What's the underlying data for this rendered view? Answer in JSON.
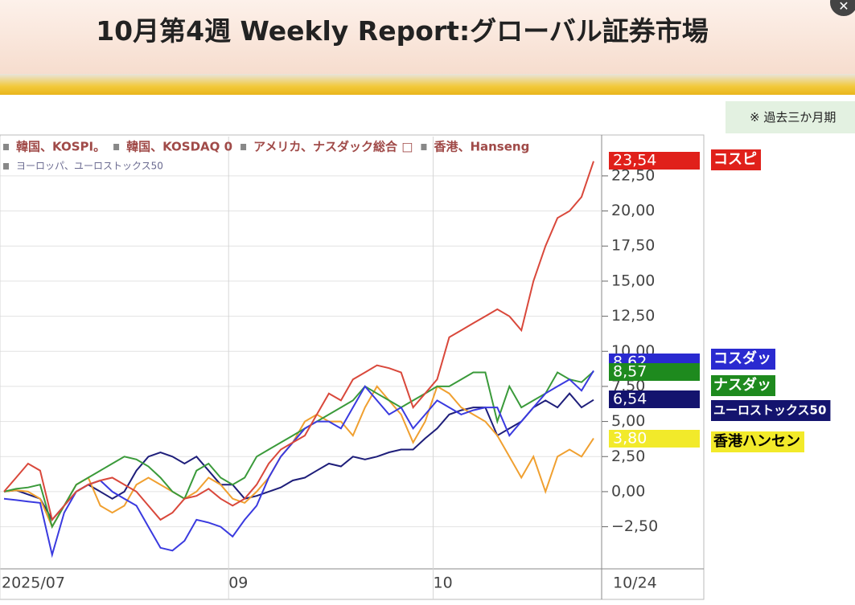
{
  "header": {
    "title": "10月第4週 Weekly Report:グローバル証券市場",
    "note": "※ 過去三か月期"
  },
  "chart_data": {
    "type": "line",
    "categories": [
      "2025/07",
      null,
      null,
      null,
      null,
      null,
      null,
      null,
      null,
      null,
      null,
      null,
      null,
      null,
      null,
      null,
      null,
      null,
      null,
      "09",
      null,
      null,
      null,
      null,
      null,
      null,
      null,
      null,
      null,
      null,
      null,
      null,
      null,
      null,
      null,
      null,
      "10",
      null,
      null,
      null,
      null,
      null,
      null,
      null,
      null,
      null,
      null,
      null,
      null,
      "10/24"
    ],
    "ylim": [
      -5.5,
      25.3
    ],
    "yticks": [
      {
        "value": -2.5,
        "label": "−2,50"
      },
      {
        "value": 0,
        "label": "0,00"
      },
      {
        "value": 2.5,
        "label": "2,50"
      },
      {
        "value": 5,
        "label": "5,00"
      },
      {
        "value": 7.5,
        "label": "7,50"
      },
      {
        "value": 10,
        "label": "10,00"
      },
      {
        "value": 12.5,
        "label": "12,50"
      },
      {
        "value": 15,
        "label": "15,00"
      },
      {
        "value": 17.5,
        "label": "17,50"
      },
      {
        "value": 20,
        "label": "20,00"
      },
      {
        "value": 22.5,
        "label": "22,50"
      }
    ],
    "grid": true,
    "series": [
      {
        "name": "韓国、KOSPI。",
        "badge": "コスピ",
        "color": "#d9483b",
        "badge_bg": "#e0201a",
        "badge_fg": "#ffffff",
        "value_label": "23,54",
        "values": [
          0.0,
          1.0,
          2.0,
          1.5,
          -2.0,
          -1.0,
          0.0,
          0.5,
          0.8,
          1.0,
          0.5,
          0.0,
          -1.0,
          -2.0,
          -1.5,
          -0.5,
          -0.3,
          0.2,
          -0.5,
          -1.0,
          -0.5,
          0.5,
          2.0,
          3.0,
          3.5,
          4.0,
          5.5,
          7.0,
          6.5,
          8.0,
          8.5,
          9.0,
          8.8,
          8.5,
          6.0,
          7.0,
          8.0,
          11.0,
          11.5,
          12.0,
          12.5,
          13.0,
          12.5,
          11.5,
          15.0,
          17.5,
          19.5,
          20.0,
          21.0,
          23.54
        ]
      },
      {
        "name": "韓国、KOSDAQ 0",
        "badge": "コスダッ",
        "color": "#3a3adf",
        "badge_bg": "#2a2ad0",
        "badge_fg": "#ffffff",
        "value_label": "8,62",
        "values": [
          -0.5,
          -0.6,
          -0.7,
          -0.8,
          -4.5,
          -1.5,
          0.0,
          0.5,
          0.8,
          0.0,
          -0.5,
          -1.0,
          -2.5,
          -4.0,
          -4.2,
          -3.5,
          -2.0,
          -2.2,
          -2.5,
          -3.2,
          -2.0,
          -1.0,
          1.0,
          2.5,
          3.5,
          4.5,
          5.0,
          5.0,
          4.5,
          6.0,
          7.5,
          6.5,
          5.5,
          6.0,
          4.5,
          5.5,
          6.5,
          6.0,
          5.5,
          5.8,
          6.0,
          6.0,
          4.0,
          5.0,
          6.0,
          7.0,
          7.5,
          8.0,
          7.2,
          8.62
        ]
      },
      {
        "name": "アメリカ、ナスダック総合 □",
        "badge": "ナスダッ",
        "color": "#3a9a3a",
        "badge_bg": "#1e8a1e",
        "badge_fg": "#ffffff",
        "value_label": "8,57",
        "values": [
          0.0,
          0.2,
          0.3,
          0.5,
          -2.5,
          -1.0,
          0.5,
          1.0,
          1.5,
          2.0,
          2.5,
          2.3,
          1.8,
          1.0,
          0.0,
          -0.5,
          1.5,
          2.0,
          1.0,
          0.5,
          1.0,
          2.5,
          3.0,
          3.5,
          4.0,
          4.5,
          5.0,
          5.5,
          6.0,
          6.5,
          7.5,
          7.0,
          6.5,
          6.0,
          6.5,
          7.0,
          7.5,
          7.5,
          8.0,
          8.5,
          8.5,
          5.0,
          7.5,
          6.0,
          6.5,
          7.0,
          8.5,
          8.0,
          7.8,
          8.57
        ]
      },
      {
        "name": "香港、Hanseng",
        "badge": "香港ハンセン",
        "color": "#f0a030",
        "badge_bg": "#f2ea2a",
        "badge_fg": "#000000",
        "value_label": "3,80",
        "values": [
          0.0,
          0.1,
          0.0,
          -0.5,
          -2.5,
          -1.0,
          0.5,
          1.0,
          -1.0,
          -1.5,
          -1.0,
          0.5,
          1.0,
          0.5,
          0.0,
          -0.5,
          0.0,
          1.0,
          0.5,
          -0.5,
          -0.8,
          0.0,
          1.0,
          2.5,
          3.5,
          5.0,
          5.5,
          5.0,
          5.0,
          4.0,
          6.0,
          7.5,
          6.5,
          5.5,
          3.5,
          5.0,
          7.5,
          7.0,
          6.0,
          5.5,
          5.0,
          4.0,
          2.5,
          1.0,
          2.5,
          0.0,
          2.5,
          3.0,
          2.5,
          3.8
        ]
      },
      {
        "name": "ヨーロッパ、ユーロストックス50",
        "badge": "ユーロストックス50",
        "color": "#1e1e7a",
        "badge_bg": "#14146e",
        "badge_fg": "#ffffff",
        "value_label": "6,54",
        "values": [
          0.0,
          0.1,
          -0.2,
          -0.5,
          -2.0,
          -1.0,
          0.0,
          0.5,
          0.0,
          -0.5,
          0.0,
          1.5,
          2.5,
          2.8,
          2.5,
          2.0,
          2.5,
          1.5,
          0.5,
          0.5,
          -0.5,
          -0.3,
          0.0,
          0.3,
          0.8,
          1.0,
          1.5,
          2.0,
          1.8,
          2.5,
          2.3,
          2.5,
          2.8,
          3.0,
          3.0,
          3.8,
          4.5,
          5.5,
          5.8,
          6.0,
          6.0,
          4.0,
          4.5,
          5.0,
          6.0,
          6.5,
          6.0,
          7.0,
          6.0,
          6.54
        ]
      }
    ]
  }
}
